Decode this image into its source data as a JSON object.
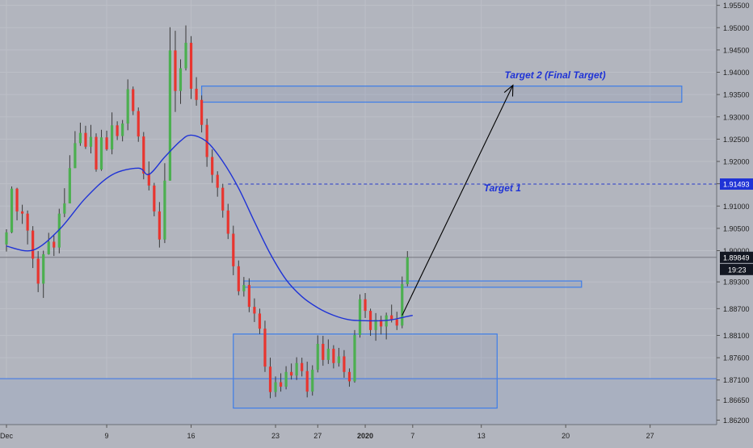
{
  "chart_data": {
    "type": "candlestick",
    "yticks": [
      "1.95500",
      "1.95000",
      "1.94500",
      "1.94000",
      "1.93500",
      "1.93000",
      "1.92500",
      "1.92000",
      "1.91500",
      "1.91000",
      "1.90500",
      "1.90000",
      "1.89300",
      "1.88700",
      "1.88100",
      "1.87600",
      "1.87100",
      "1.86650",
      "1.86200"
    ],
    "ylim": [
      1.861,
      1.9562
    ],
    "xticks": [
      {
        "label": "Dec",
        "idx": 0
      },
      {
        "label": "9",
        "idx": 19
      },
      {
        "label": "16",
        "idx": 35
      },
      {
        "label": "23",
        "idx": 51
      },
      {
        "label": "27",
        "idx": 59
      },
      {
        "label": "2020",
        "idx": 68,
        "bold": true
      },
      {
        "label": "7",
        "idx": 77
      },
      {
        "label": "13",
        "idx": 90
      },
      {
        "label": "20",
        "idx": 106
      },
      {
        "label": "27",
        "idx": 122
      }
    ],
    "current_price": "1.89849",
    "current_price_value": 1.8985,
    "countdown": "19:23",
    "target1_price": "1.91493",
    "target1_value": 1.91493,
    "annotations": {
      "target1": "Target 1",
      "target2": "Target 2 (Final Target)"
    },
    "horizontal_line": 1.8713,
    "zones": [
      {
        "name": "target2-zone",
        "from_idx": 37,
        "to_idx": 128,
        "y_low": 1.9333,
        "y_high": 1.9369
      },
      {
        "name": "resistance-zone",
        "from_idx": 45,
        "to_idx": 109,
        "y_low": 1.8918,
        "y_high": 1.8932
      },
      {
        "name": "consolidation-zone",
        "from_idx": 43,
        "to_idx": 93,
        "y_low": 1.8647,
        "y_high": 1.8813
      }
    ],
    "arrow": {
      "from_idx": 75,
      "from_y": 1.8855,
      "to_idx": 96,
      "to_y": 1.9371
    },
    "candles": [
      [
        1.9014,
        1.9048,
        1.8998,
        1.9041
      ],
      [
        1.9041,
        1.9144,
        1.9039,
        1.9139
      ],
      [
        1.9139,
        1.9141,
        1.9068,
        1.9088
      ],
      [
        1.9088,
        1.9103,
        1.906,
        1.9083
      ],
      [
        1.9083,
        1.909,
        1.9014,
        1.9045
      ],
      [
        1.9045,
        1.9055,
        1.8961,
        1.8982
      ],
      [
        1.8982,
        1.8999,
        1.8907,
        1.8926
      ],
      [
        1.8926,
        1.9,
        1.8894,
        1.8992
      ],
      [
        1.8992,
        1.904,
        1.8991,
        1.902
      ],
      [
        1.902,
        1.9034,
        1.8988,
        1.9007
      ],
      [
        1.9007,
        1.9094,
        1.8994,
        1.9083
      ],
      [
        1.9083,
        1.914,
        1.9075,
        1.9106
      ],
      [
        1.9106,
        1.9214,
        1.9106,
        1.9185
      ],
      [
        1.9185,
        1.9268,
        1.9185,
        1.9241
      ],
      [
        1.9241,
        1.9287,
        1.9235,
        1.9264
      ],
      [
        1.9264,
        1.928,
        1.9228,
        1.9233
      ],
      [
        1.9233,
        1.9282,
        1.9218,
        1.9255
      ],
      [
        1.9255,
        1.9263,
        1.9177,
        1.9182
      ],
      [
        1.9182,
        1.9271,
        1.9179,
        1.9254
      ],
      [
        1.9254,
        1.9269,
        1.9224,
        1.9227
      ],
      [
        1.9227,
        1.931,
        1.9216,
        1.9281
      ],
      [
        1.9281,
        1.929,
        1.9248,
        1.9257
      ],
      [
        1.9257,
        1.9293,
        1.9245,
        1.9285
      ],
      [
        1.9285,
        1.9384,
        1.927,
        1.9362
      ],
      [
        1.9362,
        1.9368,
        1.9304,
        1.9313
      ],
      [
        1.9313,
        1.9321,
        1.9244,
        1.9256
      ],
      [
        1.9256,
        1.9266,
        1.916,
        1.9173
      ],
      [
        1.9173,
        1.92,
        1.9135,
        1.9146
      ],
      [
        1.9146,
        1.9152,
        1.9077,
        1.9088
      ],
      [
        1.9088,
        1.9109,
        1.9007,
        1.9025
      ],
      [
        1.9025,
        1.9196,
        1.9017,
        1.9157
      ],
      [
        1.9157,
        1.9501,
        1.9157,
        1.9449
      ],
      [
        1.9449,
        1.9493,
        1.9311,
        1.9358
      ],
      [
        1.9358,
        1.9429,
        1.9329,
        1.9409
      ],
      [
        1.9409,
        1.9505,
        1.9404,
        1.9466
      ],
      [
        1.9466,
        1.9481,
        1.934,
        1.9363
      ],
      [
        1.9363,
        1.9389,
        1.9325,
        1.9338
      ],
      [
        1.9338,
        1.9348,
        1.9265,
        1.9282
      ],
      [
        1.9282,
        1.9296,
        1.9188,
        1.921
      ],
      [
        1.921,
        1.9227,
        1.9152,
        1.917
      ],
      [
        1.917,
        1.9178,
        1.9121,
        1.9141
      ],
      [
        1.9141,
        1.915,
        1.9074,
        1.909
      ],
      [
        1.909,
        1.9105,
        1.9026,
        1.9038
      ],
      [
        1.9038,
        1.9056,
        1.8945,
        1.8965
      ],
      [
        1.8965,
        1.8978,
        1.89,
        1.8909
      ],
      [
        1.8909,
        1.8941,
        1.8897,
        1.8923
      ],
      [
        1.8923,
        1.8938,
        1.8862,
        1.8874
      ],
      [
        1.8874,
        1.8893,
        1.884,
        1.8859
      ],
      [
        1.8859,
        1.887,
        1.8813,
        1.8825
      ],
      [
        1.8825,
        1.8843,
        1.8728,
        1.874
      ],
      [
        1.874,
        1.876,
        1.8669,
        1.8683
      ],
      [
        1.8683,
        1.8718,
        1.8672,
        1.8705
      ],
      [
        1.8705,
        1.8725,
        1.8684,
        1.8695
      ],
      [
        1.8695,
        1.8741,
        1.8689,
        1.8728
      ],
      [
        1.8728,
        1.8747,
        1.8711,
        1.872
      ],
      [
        1.872,
        1.8761,
        1.871,
        1.8748
      ],
      [
        1.8748,
        1.876,
        1.8718,
        1.873
      ],
      [
        1.873,
        1.8751,
        1.8671,
        1.8684
      ],
      [
        1.8684,
        1.8743,
        1.8675,
        1.8733
      ],
      [
        1.8733,
        1.881,
        1.8727,
        1.8791
      ],
      [
        1.8791,
        1.8809,
        1.8742,
        1.8755
      ],
      [
        1.8755,
        1.8801,
        1.8746,
        1.878
      ],
      [
        1.878,
        1.8788,
        1.8736,
        1.8748
      ],
      [
        1.8748,
        1.8782,
        1.874,
        1.8763
      ],
      [
        1.8763,
        1.8777,
        1.8715,
        1.8728
      ],
      [
        1.8728,
        1.8736,
        1.8695,
        1.8707
      ],
      [
        1.8707,
        1.8822,
        1.8704,
        1.8811
      ],
      [
        1.8811,
        1.8902,
        1.8805,
        1.8891
      ],
      [
        1.8891,
        1.8905,
        1.8849,
        1.8865
      ],
      [
        1.8865,
        1.887,
        1.8809,
        1.8822
      ],
      [
        1.8822,
        1.886,
        1.8798,
        1.8845
      ],
      [
        1.8845,
        1.8854,
        1.8812,
        1.883
      ],
      [
        1.883,
        1.8861,
        1.8801,
        1.8855
      ],
      [
        1.8855,
        1.8879,
        1.8839,
        1.8846
      ],
      [
        1.8846,
        1.8863,
        1.8822,
        1.8832
      ],
      [
        1.8832,
        1.8942,
        1.8826,
        1.8925
      ],
      [
        1.8925,
        1.8999,
        1.892,
        1.8985
      ]
    ],
    "ma": [
      [
        0,
        1.901
      ],
      [
        5,
        1.9001
      ],
      [
        10,
        1.9047
      ],
      [
        15,
        1.9118
      ],
      [
        20,
        1.917
      ],
      [
        25,
        1.9185
      ],
      [
        27,
        1.9171
      ],
      [
        30,
        1.921
      ],
      [
        33,
        1.9246
      ],
      [
        35,
        1.9259
      ],
      [
        38,
        1.9244
      ],
      [
        41,
        1.92
      ],
      [
        44,
        1.914
      ],
      [
        47,
        1.9065
      ],
      [
        50,
        1.8993
      ],
      [
        53,
        1.8935
      ],
      [
        56,
        1.8897
      ],
      [
        59,
        1.8872
      ],
      [
        62,
        1.8855
      ],
      [
        65,
        1.8845
      ],
      [
        68,
        1.8843
      ],
      [
        71,
        1.8843
      ],
      [
        73,
        1.8845
      ],
      [
        75,
        1.885
      ],
      [
        77,
        1.8855
      ]
    ]
  }
}
